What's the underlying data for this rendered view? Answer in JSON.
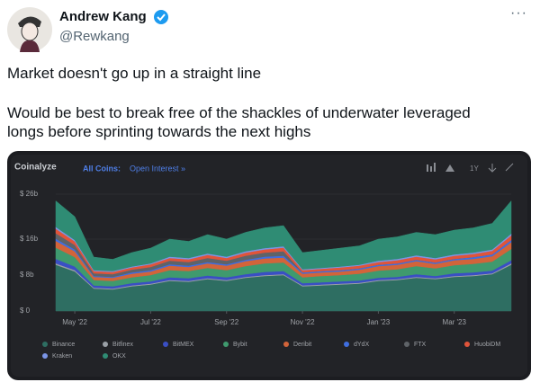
{
  "tweet": {
    "author": "Andrew Kang",
    "handle": "@Rewkang",
    "paragraphs": [
      "Market doesn't go up in a straight line",
      "Would be best to break free of the shackles of underwater leveraged longs before sprinting towards the next highs"
    ]
  },
  "chart_data": {
    "type": "stacked_area",
    "brand": "Coinalyze",
    "title": "All Coins:",
    "subtitle": "Open Interest »",
    "range_button": "1Y",
    "x": [
      0,
      0.5,
      1,
      1.5,
      2,
      2.5,
      3,
      3.5,
      4,
      4.5,
      5,
      5.5,
      6,
      6.5,
      7,
      7.5,
      8,
      8.5,
      9,
      9.5,
      10,
      10.5,
      11,
      11.5,
      12
    ],
    "xlim": [
      0,
      12
    ],
    "xticks": [
      {
        "value": 0.5,
        "label": "May '22"
      },
      {
        "value": 2.5,
        "label": "Jul '22"
      },
      {
        "value": 4.5,
        "label": "Sep '22"
      },
      {
        "value": 6.5,
        "label": "Nov '22"
      },
      {
        "value": 8.5,
        "label": "Jan '23"
      },
      {
        "value": 10.5,
        "label": "Mar '23"
      }
    ],
    "ylim": [
      0,
      28
    ],
    "yticks": [
      {
        "value": 0,
        "label": "$ 0"
      },
      {
        "value": 8,
        "label": "$ 8b"
      },
      {
        "value": 16,
        "label": "$ 16b"
      },
      {
        "value": 26,
        "label": "$ 26b"
      }
    ],
    "series": [
      {
        "name": "Binance",
        "color": "#2e6e62",
        "values": [
          10.3,
          8.8,
          5.0,
          4.8,
          5.5,
          5.9,
          6.7,
          6.5,
          7.1,
          6.7,
          7.4,
          7.8,
          8.0,
          5.5,
          5.7,
          5.9,
          6.1,
          6.7,
          6.9,
          7.4,
          7.1,
          7.6,
          7.8,
          8.2,
          10.3
        ]
      },
      {
        "name": "Bitfinex",
        "color": "#9aa0a6",
        "values": [
          0.3,
          0.3,
          0.2,
          0.2,
          0.2,
          0.2,
          0.2,
          0.2,
          0.2,
          0.2,
          0.2,
          0.2,
          0.2,
          0.2,
          0.2,
          0.2,
          0.2,
          0.2,
          0.2,
          0.2,
          0.2,
          0.2,
          0.2,
          0.2,
          0.3
        ]
      },
      {
        "name": "BitMEX",
        "color": "#3a4fc4",
        "values": [
          1.0,
          0.8,
          0.5,
          0.5,
          0.5,
          0.5,
          0.6,
          0.6,
          0.6,
          0.6,
          0.6,
          0.7,
          0.7,
          0.5,
          0.5,
          0.5,
          0.5,
          0.5,
          0.5,
          0.6,
          0.5,
          0.6,
          0.6,
          0.6,
          0.7
        ]
      },
      {
        "name": "Bybit",
        "color": "#3f9a6e",
        "values": [
          2.5,
          2.1,
          1.2,
          1.2,
          1.3,
          1.4,
          1.6,
          1.6,
          1.7,
          1.6,
          1.8,
          1.9,
          1.9,
          1.3,
          1.4,
          1.4,
          1.5,
          1.6,
          1.7,
          1.8,
          1.7,
          1.8,
          1.9,
          2.0,
          2.5
        ]
      },
      {
        "name": "Deribit",
        "color": "#d2643a",
        "values": [
          1.5,
          1.3,
          0.7,
          0.7,
          0.8,
          0.8,
          1.0,
          0.9,
          1.0,
          1.0,
          1.1,
          1.1,
          1.1,
          0.8,
          0.8,
          0.8,
          0.9,
          1.0,
          1.0,
          1.1,
          1.0,
          1.1,
          1.1,
          1.2,
          1.5
        ]
      },
      {
        "name": "dYdX",
        "color": "#3f6ee0",
        "values": [
          0.5,
          0.4,
          0.2,
          0.2,
          0.3,
          0.3,
          0.3,
          0.3,
          0.3,
          0.3,
          0.3,
          0.4,
          0.4,
          0.3,
          0.3,
          0.3,
          0.3,
          0.3,
          0.3,
          0.3,
          0.3,
          0.3,
          0.4,
          0.4,
          0.5
        ]
      },
      {
        "name": "FTX",
        "color": "#5f6368",
        "values": [
          1.2,
          1.0,
          0.6,
          0.6,
          0.6,
          0.7,
          0.8,
          0.8,
          0.9,
          0.8,
          0.9,
          0.9,
          1.0,
          0,
          0,
          0,
          0,
          0,
          0,
          0,
          0,
          0,
          0,
          0,
          0
        ]
      },
      {
        "name": "HuobiDM",
        "color": "#e0543a",
        "values": [
          1.0,
          0.8,
          0.5,
          0.5,
          0.5,
          0.6,
          0.6,
          0.6,
          0.7,
          0.6,
          0.7,
          0.7,
          0.8,
          0.5,
          0.5,
          0.6,
          0.6,
          0.6,
          0.7,
          0.7,
          0.7,
          0.7,
          0.7,
          0.8,
          1.0
        ]
      },
      {
        "name": "Kraken",
        "color": "#7b95e6",
        "values": [
          0.4,
          0.3,
          0.2,
          0.2,
          0.2,
          0.2,
          0.3,
          0.3,
          0.3,
          0.3,
          0.3,
          0.3,
          0.3,
          0.2,
          0.2,
          0.2,
          0.2,
          0.3,
          0.3,
          0.3,
          0.3,
          0.3,
          0.3,
          0.3,
          0.4
        ]
      },
      {
        "name": "OKX",
        "color": "#2f8c74",
        "values": [
          5.8,
          5.2,
          2.9,
          2.6,
          3.1,
          3.4,
          3.9,
          3.7,
          4.2,
          3.9,
          4.2,
          4.5,
          4.6,
          3.7,
          3.9,
          4.1,
          4.2,
          4.8,
          4.9,
          5.1,
          5.2,
          5.4,
          5.5,
          5.8,
          7.3
        ]
      }
    ]
  }
}
